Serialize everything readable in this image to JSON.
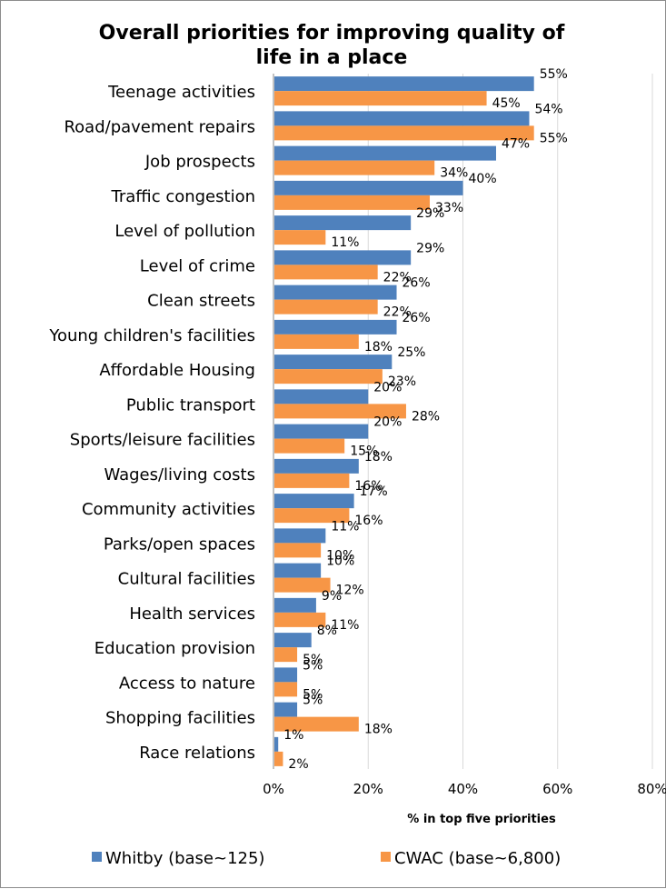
{
  "chart_data": {
    "type": "bar",
    "orientation": "horizontal",
    "title_lines": [
      "Overall priorities for improving quality of",
      "life in a place"
    ],
    "xlabel": "% in top five priorities",
    "ylabel": "",
    "xlim": [
      0,
      80
    ],
    "x_ticks": [
      "0%",
      "20%",
      "40%",
      "60%",
      "80%"
    ],
    "grid": true,
    "legend_position": "bottom",
    "categories": [
      "Teenage activities",
      "Road/pavement repairs",
      "Job prospects",
      "Traffic congestion",
      "Level of pollution",
      "Level of crime",
      "Clean streets",
      "Young children's facilities",
      "Affordable Housing",
      "Public transport",
      "Sports/leisure facilities",
      "Wages/living costs",
      "Community activities",
      "Parks/open spaces",
      "Cultural facilities",
      "Health services",
      "Education provision",
      "Access to nature",
      "Shopping facilities",
      "Race relations"
    ],
    "series": [
      {
        "name": "Whitby (base~125)",
        "color": "#4f81bd",
        "values": [
          55,
          54,
          47,
          40,
          29,
          29,
          26,
          26,
          25,
          20,
          20,
          18,
          17,
          11,
          10,
          9,
          8,
          5,
          5,
          1
        ],
        "labels": [
          "55%",
          "54%",
          "47%",
          "40%",
          "29%",
          "29%",
          "26%",
          "26%",
          "25%",
          "20%",
          "20%",
          "18%",
          "17%",
          "11%",
          "10%",
          "9%",
          "8%",
          "5%",
          "5%",
          "1%"
        ]
      },
      {
        "name": "CWAC (base~6,800)",
        "color": "#f79646",
        "values": [
          45,
          55,
          34,
          33,
          11,
          22,
          22,
          18,
          23,
          28,
          15,
          16,
          16,
          10,
          12,
          11,
          5,
          5,
          18,
          2
        ],
        "labels": [
          "45%",
          "55%",
          "34%",
          "33%",
          "11%",
          "22%",
          "22%",
          "18%",
          "23%",
          "28%",
          "15%",
          "16%",
          "16%",
          "10%",
          "12%",
          "11%",
          "5%",
          "5%",
          "18%",
          "2%"
        ]
      }
    ]
  }
}
